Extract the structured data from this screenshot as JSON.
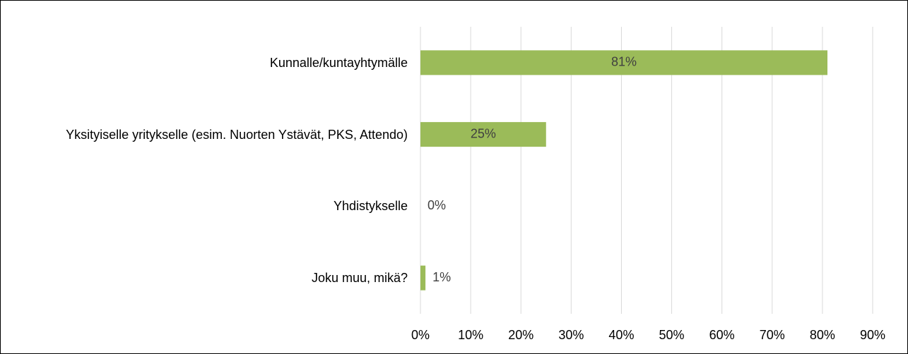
{
  "chart_data": {
    "type": "barh",
    "categories": [
      "Kunnalle/kuntayhtymälle",
      "Yksityiselle yritykselle (esim. Nuorten Ystävät, PKS, Attendo)",
      "Yhdistykselle",
      "Joku muu, mikä?"
    ],
    "values": [
      81,
      25,
      0,
      1
    ],
    "value_labels": [
      "81%",
      "25%",
      "0%",
      "1%"
    ],
    "color": "#9bbb59",
    "xlim": [
      0,
      90
    ],
    "xticks": [
      {
        "value": 0,
        "label": "0%"
      },
      {
        "value": 10,
        "label": "10%"
      },
      {
        "value": 20,
        "label": "20%"
      },
      {
        "value": 30,
        "label": "30%"
      },
      {
        "value": 40,
        "label": "40%"
      },
      {
        "value": 50,
        "label": "50%"
      },
      {
        "value": 60,
        "label": "60%"
      },
      {
        "value": 70,
        "label": "70%"
      },
      {
        "value": 80,
        "label": "80%"
      },
      {
        "value": 90,
        "label": "90%"
      }
    ],
    "grid": true
  }
}
